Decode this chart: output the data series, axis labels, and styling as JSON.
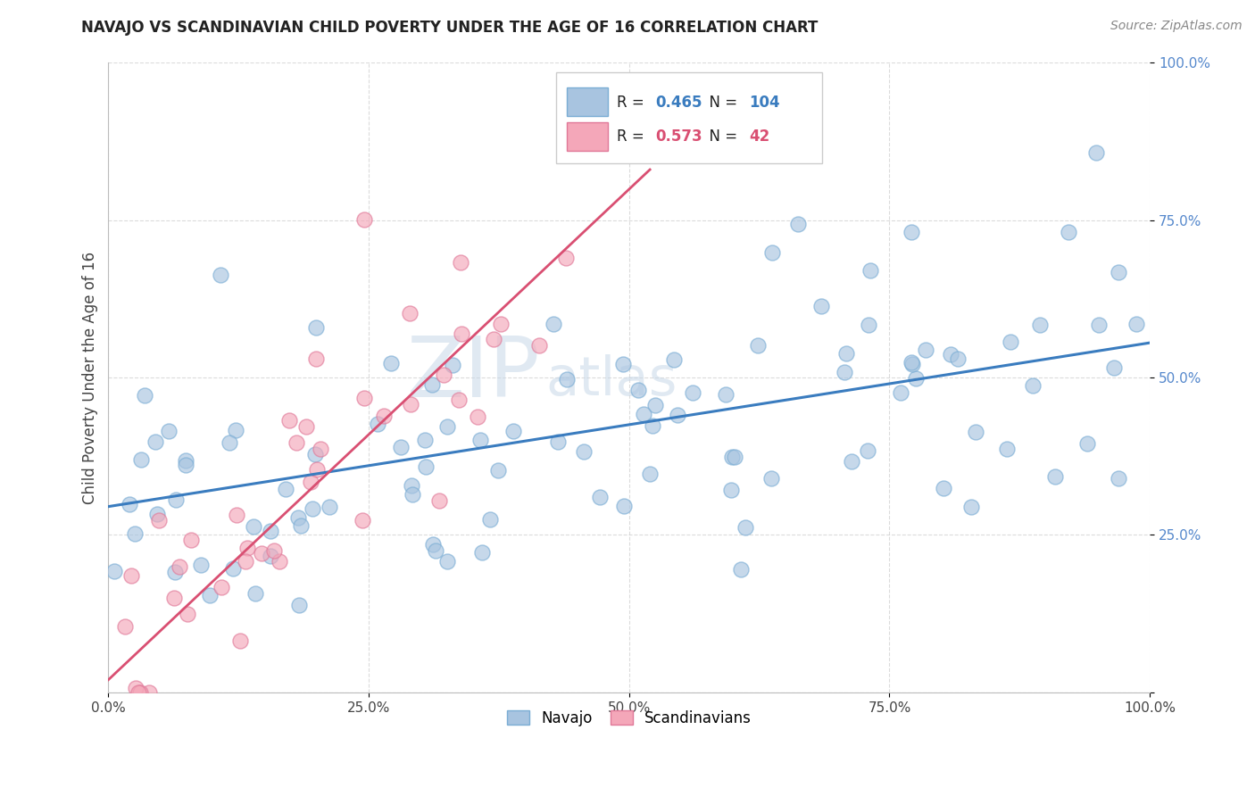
{
  "title": "NAVAJO VS SCANDINAVIAN CHILD POVERTY UNDER THE AGE OF 16 CORRELATION CHART",
  "source": "Source: ZipAtlas.com",
  "ylabel": "Child Poverty Under the Age of 16",
  "xlim": [
    0.0,
    1.0
  ],
  "ylim": [
    0.0,
    1.0
  ],
  "xticks": [
    0.0,
    0.25,
    0.5,
    0.75,
    1.0
  ],
  "yticks": [
    0.0,
    0.25,
    0.5,
    0.75,
    1.0
  ],
  "xticklabels": [
    "0.0%",
    "25.0%",
    "50.0%",
    "75.0%",
    "100.0%"
  ],
  "yticklabels": [
    "",
    "25.0%",
    "50.0%",
    "75.0%",
    "100.0%"
  ],
  "navajo_color": "#a8c4e0",
  "scandinavian_color": "#f4a7b9",
  "navajo_edge_color": "#7aadd4",
  "scandinavian_edge_color": "#e07898",
  "navajo_line_color": "#3a7cbf",
  "scandinavian_line_color": "#d94f72",
  "navajo_R": 0.465,
  "navajo_N": 104,
  "scandinavian_R": 0.573,
  "scandinavian_N": 42,
  "background_color": "#ffffff",
  "grid_color": "#cccccc",
  "tick_color": "#5588cc",
  "watermark_zip": "ZIP",
  "watermark_atlas": "atlas",
  "legend_label_navajo": "Navajo",
  "legend_label_scan": "Scandinavians"
}
